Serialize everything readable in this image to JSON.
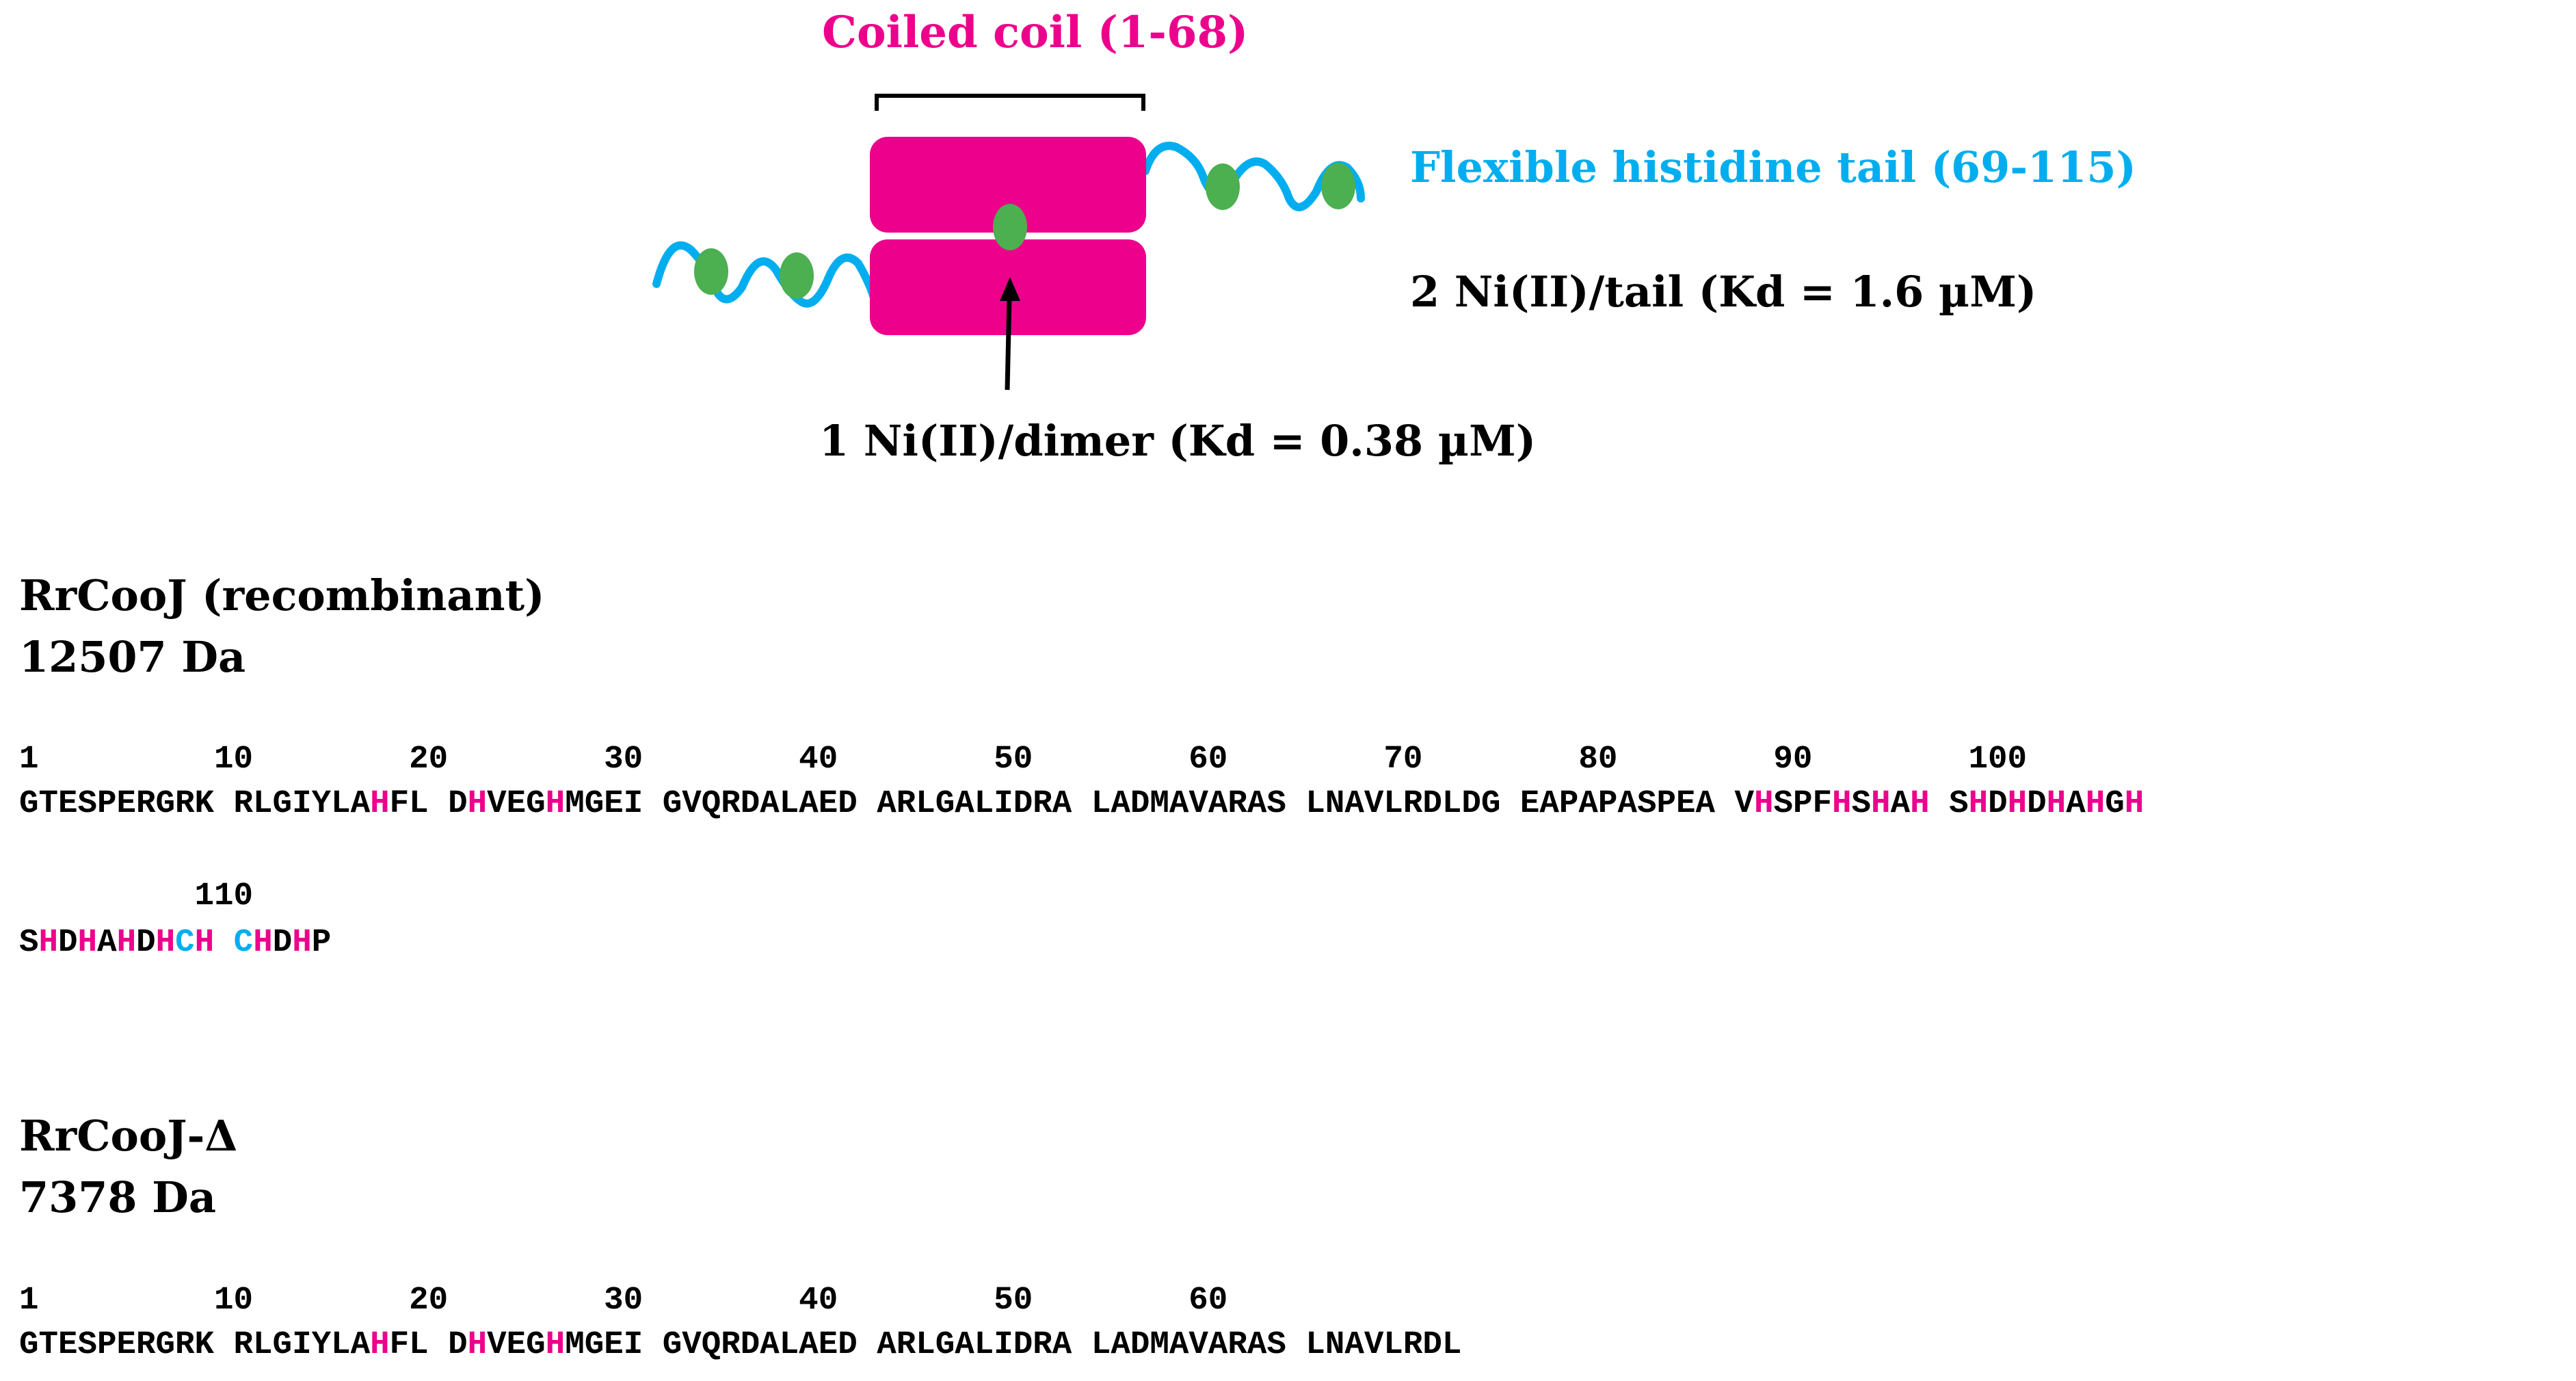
{
  "colors": {
    "magenta": "#EC008C",
    "cyan": "#00AEEF",
    "green": "#4CAF50",
    "black": "#000000"
  },
  "diagram": {
    "coiled_coil_label": "Coiled coil (1-68)",
    "tail_label": "Flexible histidine tail (69-115)",
    "tail_binding": "2 Ni(II)/tail (Kd = 1.6 µM)",
    "dimer_binding": "1 Ni(II)/dimer (Kd = 0.38 µM)"
  },
  "proteins": [
    {
      "name": "RrCooJ (recombinant)",
      "mass": "12507 Da",
      "ruler_lines": [
        "1         10        20        30        40        50        60        70        80        90        100",
        "         110"
      ],
      "sequence_lines": [
        [
          {
            "t": "GTESPERGRK RLGIYLA",
            "c": ""
          },
          {
            "t": "H",
            "c": "m"
          },
          {
            "t": "FL D",
            "c": ""
          },
          {
            "t": "H",
            "c": "m"
          },
          {
            "t": "VEG",
            "c": ""
          },
          {
            "t": "H",
            "c": "m"
          },
          {
            "t": "MGEI GVQRDALAED ARLGALIDRA LADMAVARAS LNAVLRDLDG EAPAPASPEA V",
            "c": ""
          },
          {
            "t": "H",
            "c": "m"
          },
          {
            "t": "SPF",
            "c": ""
          },
          {
            "t": "H",
            "c": "m"
          },
          {
            "t": "S",
            "c": ""
          },
          {
            "t": "H",
            "c": "m"
          },
          {
            "t": "A",
            "c": ""
          },
          {
            "t": "H",
            "c": "m"
          },
          {
            "t": " S",
            "c": ""
          },
          {
            "t": "H",
            "c": "m"
          },
          {
            "t": "D",
            "c": ""
          },
          {
            "t": "H",
            "c": "m"
          },
          {
            "t": "D",
            "c": ""
          },
          {
            "t": "H",
            "c": "m"
          },
          {
            "t": "A",
            "c": ""
          },
          {
            "t": "H",
            "c": "m"
          },
          {
            "t": "G",
            "c": ""
          },
          {
            "t": "H",
            "c": "m"
          }
        ],
        [
          {
            "t": "S",
            "c": ""
          },
          {
            "t": "H",
            "c": "m"
          },
          {
            "t": "D",
            "c": ""
          },
          {
            "t": "H",
            "c": "m"
          },
          {
            "t": "A",
            "c": ""
          },
          {
            "t": "H",
            "c": "m"
          },
          {
            "t": "D",
            "c": ""
          },
          {
            "t": "H",
            "c": "m"
          },
          {
            "t": "C",
            "c": "c"
          },
          {
            "t": "H",
            "c": "m"
          },
          {
            "t": " ",
            "c": ""
          },
          {
            "t": "C",
            "c": "c"
          },
          {
            "t": "H",
            "c": "m"
          },
          {
            "t": "D",
            "c": ""
          },
          {
            "t": "H",
            "c": "m"
          },
          {
            "t": "P",
            "c": ""
          }
        ]
      ]
    },
    {
      "name": "RrCooJ-Δ",
      "mass": "7378 Da",
      "ruler_lines": [
        "1         10        20        30        40        50        60"
      ],
      "sequence_lines": [
        [
          {
            "t": "GTESPERGRK RLGIYLA",
            "c": ""
          },
          {
            "t": "H",
            "c": "m"
          },
          {
            "t": "FL D",
            "c": ""
          },
          {
            "t": "H",
            "c": "m"
          },
          {
            "t": "VEG",
            "c": ""
          },
          {
            "t": "H",
            "c": "m"
          },
          {
            "t": "MGEI GVQRDALAED ARLGALIDRA LADMAVARAS LNAVLRDL",
            "c": ""
          }
        ]
      ]
    }
  ]
}
